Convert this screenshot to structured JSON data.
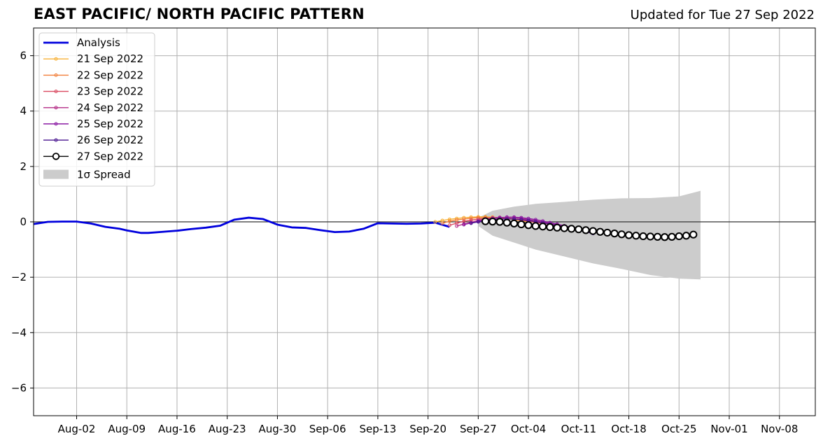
{
  "header": {
    "title": "EAST PACIFIC/ NORTH PACIFIC PATTERN",
    "updated": "Updated for Tue 27 Sep 2022"
  },
  "chart_data": {
    "type": "line",
    "xlim": [
      "2022-07-27",
      "2022-11-13"
    ],
    "ylim": [
      -7,
      7
    ],
    "grid": true,
    "legend_position": "upper-left",
    "x_ticks": [
      "Aug-02",
      "Aug-09",
      "Aug-16",
      "Aug-23",
      "Aug-30",
      "Sep-06",
      "Sep-13",
      "Sep-20",
      "Sep-27",
      "Oct-04",
      "Oct-11",
      "Oct-18",
      "Oct-25",
      "Nov-01",
      "Nov-08"
    ],
    "x_tick_dates": [
      "2022-08-02",
      "2022-08-09",
      "2022-08-16",
      "2022-08-23",
      "2022-08-30",
      "2022-09-06",
      "2022-09-13",
      "2022-09-20",
      "2022-09-27",
      "2022-10-04",
      "2022-10-11",
      "2022-10-18",
      "2022-10-25",
      "2022-11-01",
      "2022-11-08"
    ],
    "y_ticks": [
      -6,
      -4,
      -2,
      0,
      2,
      4,
      6
    ],
    "y_tick_labels": [
      "−6",
      "−4",
      "−2",
      "0",
      "2",
      "4",
      "6"
    ],
    "analysis": {
      "name": "Analysis",
      "color": "#0000dd",
      "dates": [
        "2022-07-27",
        "2022-07-29",
        "2022-07-31",
        "2022-08-02",
        "2022-08-04",
        "2022-08-06",
        "2022-08-08",
        "2022-08-09",
        "2022-08-11",
        "2022-08-12",
        "2022-08-14",
        "2022-08-16",
        "2022-08-18",
        "2022-08-20",
        "2022-08-22",
        "2022-08-24",
        "2022-08-26",
        "2022-08-28",
        "2022-08-30",
        "2022-09-01",
        "2022-09-03",
        "2022-09-05",
        "2022-09-07",
        "2022-09-09",
        "2022-09-11",
        "2022-09-13",
        "2022-09-15",
        "2022-09-17",
        "2022-09-19",
        "2022-09-21",
        "2022-09-23"
      ],
      "values": [
        -0.08,
        0.0,
        0.01,
        0.01,
        -0.06,
        -0.18,
        -0.25,
        -0.31,
        -0.4,
        -0.4,
        -0.36,
        -0.32,
        -0.26,
        -0.21,
        -0.14,
        0.08,
        0.15,
        0.1,
        -0.1,
        -0.2,
        -0.22,
        -0.3,
        -0.37,
        -0.35,
        -0.25,
        -0.05,
        -0.06,
        -0.07,
        -0.06,
        -0.03,
        -0.18
      ]
    },
    "forecasts": [
      {
        "name": "21 Sep 2022",
        "color": "#f7b034",
        "start": "2022-09-21",
        "values": [
          0.0,
          0.05,
          0.09,
          0.12,
          0.15,
          0.17,
          0.18,
          0.18,
          0.17,
          0.15,
          0.12,
          0.08,
          0.04,
          0.0
        ]
      },
      {
        "name": "22 Sep 2022",
        "color": "#f17f3a",
        "start": "2022-09-22",
        "values": [
          -0.05,
          0.02,
          0.07,
          0.1,
          0.13,
          0.15,
          0.16,
          0.16,
          0.15,
          0.13,
          0.1,
          0.06,
          0.02,
          -0.02,
          -0.06
        ]
      },
      {
        "name": "23 Sep 2022",
        "color": "#d9485f",
        "start": "2022-09-23",
        "values": [
          -0.12,
          -0.05,
          0.02,
          0.06,
          0.1,
          0.12,
          0.13,
          0.13,
          0.12,
          0.1,
          0.07,
          0.03,
          -0.01,
          -0.05,
          -0.09,
          -0.13
        ]
      },
      {
        "name": "24 Sep 2022",
        "color": "#b42b86",
        "start": "2022-09-24",
        "values": [
          -0.15,
          -0.08,
          -0.02,
          0.05,
          0.1,
          0.14,
          0.16,
          0.16,
          0.15,
          0.12,
          0.08,
          0.04,
          -0.01,
          -0.06,
          -0.11,
          -0.16,
          -0.22
        ]
      },
      {
        "name": "25 Sep 2022",
        "color": "#8a19a3",
        "start": "2022-09-25",
        "values": [
          -0.1,
          -0.04,
          0.02,
          0.08,
          0.12,
          0.15,
          0.17,
          0.17,
          0.15,
          0.12,
          0.08,
          0.03,
          -0.03,
          -0.08,
          -0.14,
          -0.2,
          -0.28,
          -0.35
        ]
      },
      {
        "name": "26 Sep 2022",
        "color": "#4a1590",
        "start": "2022-09-26",
        "values": [
          -0.05,
          0.0,
          0.04,
          0.08,
          0.1,
          0.11,
          0.1,
          0.08,
          0.05,
          0.01,
          -0.03,
          -0.08,
          -0.13,
          -0.18,
          -0.24,
          -0.3,
          -0.36,
          -0.42
        ]
      },
      {
        "name": "27 Sep 2022",
        "color": "#000000",
        "start": "2022-09-28",
        "values": [
          0.02,
          0.01,
          0.0,
          -0.03,
          -0.06,
          -0.09,
          -0.12,
          -0.15,
          -0.17,
          -0.19,
          -0.21,
          -0.23,
          -0.25,
          -0.27,
          -0.3,
          -0.33,
          -0.36,
          -0.39,
          -0.42,
          -0.45,
          -0.48,
          -0.5,
          -0.52,
          -0.53,
          -0.54,
          -0.55,
          -0.54,
          -0.52,
          -0.5,
          -0.46
        ]
      }
    ],
    "spread": {
      "name": "1σ Spread",
      "color": "#cccccc",
      "dates": [
        "2022-09-27",
        "2022-09-29",
        "2022-10-02",
        "2022-10-05",
        "2022-10-09",
        "2022-10-13",
        "2022-10-17",
        "2022-10-21",
        "2022-10-25",
        "2022-10-28"
      ],
      "upper": [
        0.15,
        0.4,
        0.55,
        0.65,
        0.72,
        0.8,
        0.85,
        0.86,
        0.92,
        1.12
      ],
      "lower": [
        -0.15,
        -0.5,
        -0.75,
        -1.0,
        -1.25,
        -1.5,
        -1.7,
        -1.92,
        -2.05,
        -2.08
      ]
    }
  }
}
